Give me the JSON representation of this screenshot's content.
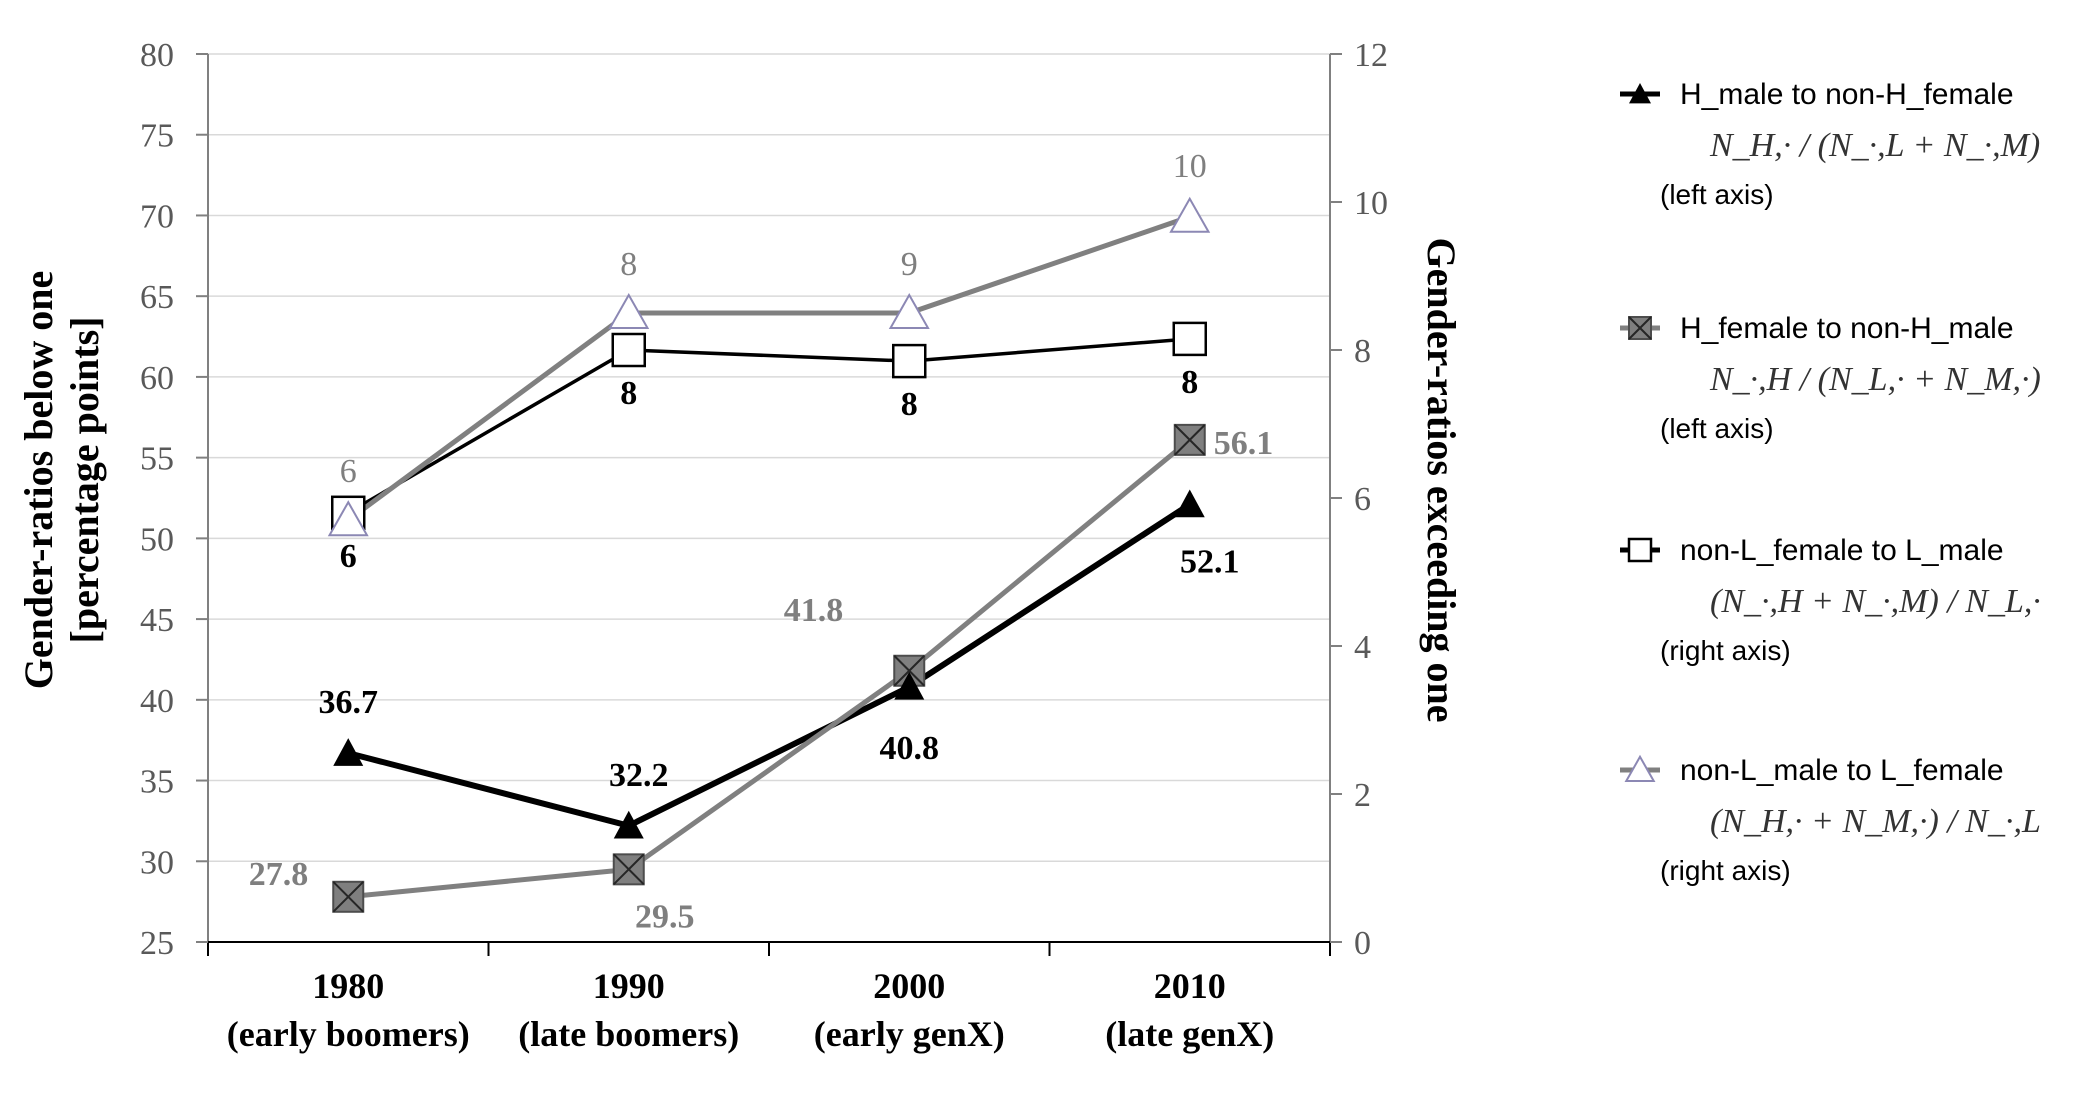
{
  "chart_data": {
    "type": "line",
    "categories": [
      "1980",
      "1990",
      "2000",
      "2010"
    ],
    "category_sublabels": [
      "(early boomers)",
      "(late boomers)",
      "(early genX)",
      "(late genX)"
    ],
    "left_axis": {
      "title_line1": "Gender-ratios below one",
      "title_line2": "[percentage points]",
      "ylim": [
        25,
        80
      ],
      "ticks": [
        25,
        30,
        35,
        40,
        45,
        50,
        55,
        60,
        65,
        70,
        75,
        80
      ]
    },
    "right_axis": {
      "title": "Gender-ratios exceeding one",
      "ylim": [
        0,
        12
      ],
      "ticks": [
        0,
        2,
        4,
        6,
        8,
        10,
        12
      ]
    },
    "series": [
      {
        "name": "H_male to non-H_female",
        "formula": "N_H,· / (N_·,L + N_·,M)",
        "axis_note": "(left axis)",
        "axis": "left",
        "marker": "triangle-filled",
        "color": "#000000",
        "values": [
          36.7,
          32.2,
          40.8,
          52.1
        ],
        "labels": [
          "36.7",
          "32.2",
          "40.8",
          "52.1"
        ]
      },
      {
        "name": "H_female to non-H_male",
        "formula": "N_·,H / (N_L,· + N_M,·)",
        "axis_note": "(left axis)",
        "axis": "left",
        "marker": "square-x",
        "color": "#808080",
        "values": [
          27.8,
          29.5,
          41.8,
          56.1
        ],
        "labels": [
          "27.8",
          "29.5",
          "41.8",
          "56.1"
        ]
      },
      {
        "name": "non-L_female to L_male",
        "formula": "(N_·,H + N_·,M) / N_L,·",
        "axis_note": "(right axis)",
        "axis": "right",
        "marker": "square-open",
        "color": "#000000",
        "values": [
          5.8,
          8.0,
          7.85,
          8.15
        ],
        "labels": [
          "6",
          "8",
          "8",
          "8"
        ]
      },
      {
        "name": "non-L_male to L_female",
        "formula": "(N_H,· + N_M,·) / N_·,L",
        "axis_note": "(right axis)",
        "axis": "right",
        "marker": "triangle-open",
        "color": "#808080",
        "values": [
          5.7,
          8.5,
          8.5,
          9.8
        ],
        "labels": [
          "6",
          "8",
          "9",
          "10"
        ]
      }
    ],
    "grid": true,
    "legend_position": "right"
  }
}
